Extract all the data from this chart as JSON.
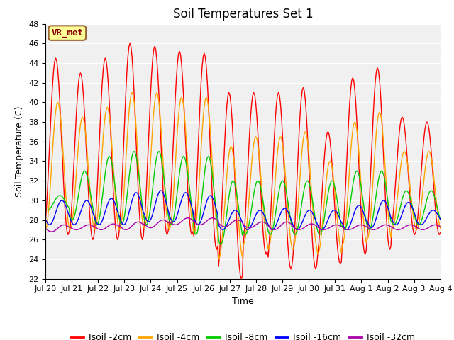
{
  "title": "Soil Temperatures Set 1",
  "xlabel": "Time",
  "ylabel": "Soil Temperature (C)",
  "ylim": [
    22,
    48
  ],
  "yticks": [
    22,
    24,
    26,
    28,
    30,
    32,
    34,
    36,
    38,
    40,
    42,
    44,
    46,
    48
  ],
  "fig_facecolor": "#ffffff",
  "plot_facecolor": "#f0f0f0",
  "series": [
    {
      "label": "Tsoil -2cm",
      "color": "#ff0000"
    },
    {
      "label": "Tsoil -4cm",
      "color": "#ffa500"
    },
    {
      "label": "Tsoil -8cm",
      "color": "#00cc00"
    },
    {
      "label": "Tsoil -16cm",
      "color": "#0000ff"
    },
    {
      "label": "Tsoil -32cm",
      "color": "#aa00aa"
    }
  ],
  "xtick_labels": [
    "Jul 20",
    "Jul 21",
    "Jul 22",
    "Jul 23",
    "Jul 24",
    "Jul 25",
    "Jul 26",
    "Jul 27",
    "Jul 28",
    "Jul 29",
    "Jul 30",
    "Jul 31",
    "Aug 1",
    "Aug 2",
    "Aug 3",
    "Aug 4"
  ],
  "annotation_text": "VR_met",
  "annotation_facecolor": "#ffff99",
  "annotation_edgecolor": "#996633",
  "title_fontsize": 12,
  "axis_label_fontsize": 9,
  "tick_label_fontsize": 8,
  "legend_fontsize": 9,
  "peaks_max_2": [
    44.5,
    43.0,
    44.5,
    46.0,
    45.7,
    45.2,
    45.0,
    41.0,
    41.0,
    41.0,
    41.5,
    37.0,
    42.5,
    43.5,
    38.5,
    38.0
  ],
  "peaks_min_2": [
    26.5,
    26.0,
    26.0,
    26.0,
    26.5,
    26.5,
    25.0,
    22.0,
    24.5,
    23.0,
    23.0,
    23.5,
    24.5,
    25.0,
    26.5,
    26.5
  ],
  "peaks_max_4": [
    40.0,
    38.5,
    39.5,
    41.0,
    41.0,
    40.5,
    40.5,
    35.5,
    36.5,
    36.5,
    37.0,
    34.0,
    38.0,
    39.0,
    35.0,
    35.0
  ],
  "peaks_min_4": [
    27.0,
    27.0,
    27.0,
    27.0,
    27.2,
    27.0,
    26.5,
    24.0,
    25.5,
    25.0,
    25.0,
    24.5,
    25.5,
    26.0,
    27.0,
    27.0
  ],
  "peaks_max_8": [
    30.5,
    33.0,
    34.5,
    35.0,
    35.0,
    34.5,
    34.5,
    32.0,
    32.0,
    32.0,
    32.0,
    32.0,
    33.0,
    33.0,
    31.0,
    31.0
  ],
  "peaks_min_8": [
    29.0,
    28.0,
    27.5,
    27.5,
    27.5,
    27.5,
    26.5,
    25.5,
    26.5,
    26.5,
    26.5,
    26.5,
    27.0,
    27.0,
    27.5,
    27.5
  ],
  "peaks_max_16": [
    30.0,
    30.0,
    30.2,
    30.8,
    31.0,
    30.8,
    30.5,
    29.0,
    29.0,
    29.2,
    29.0,
    29.0,
    29.5,
    30.0,
    29.8,
    29.0
  ],
  "peaks_min_16": [
    27.5,
    27.5,
    27.5,
    27.5,
    27.8,
    27.8,
    27.5,
    27.0,
    27.0,
    27.0,
    27.0,
    27.0,
    27.0,
    27.2,
    27.5,
    27.5
  ],
  "peaks_max_32": [
    27.5,
    27.5,
    27.6,
    27.8,
    28.0,
    28.2,
    28.2,
    28.0,
    27.8,
    27.8,
    27.6,
    27.5,
    27.5,
    27.5,
    27.5,
    27.5
  ],
  "peaks_min_32": [
    26.8,
    27.0,
    27.0,
    27.0,
    27.2,
    27.5,
    27.5,
    27.3,
    27.2,
    27.0,
    27.0,
    27.0,
    27.0,
    27.0,
    27.0,
    27.0
  ],
  "lag_hours": [
    0,
    2,
    4,
    6,
    8
  ]
}
